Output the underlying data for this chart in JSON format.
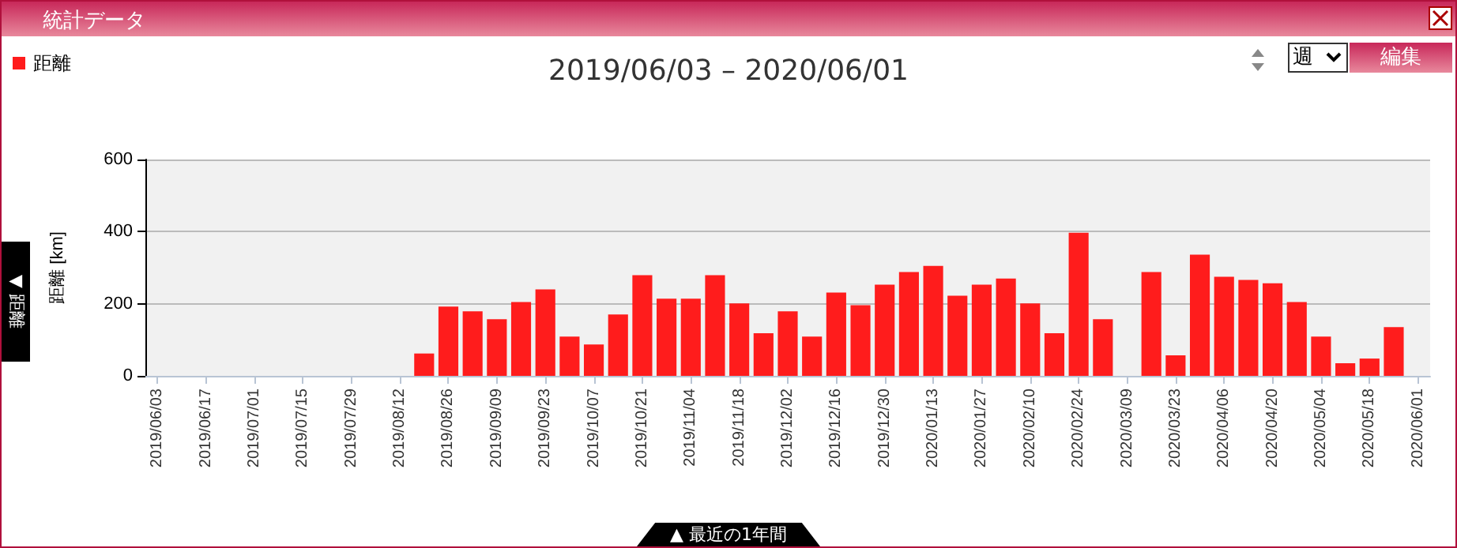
{
  "chart_data": {
    "type": "bar",
    "title": "2019/06/03 – 2020/06/01",
    "ylabel": "距離 [km]",
    "annotations": [
      "統計データ",
      "週",
      "編集",
      "▼ 距離",
      "▲ 最近の1年間"
    ],
    "categories": [
      "2019/06/03",
      null,
      "2019/06/17",
      null,
      "2019/07/01",
      null,
      "2019/07/15",
      null,
      "2019/07/29",
      null,
      "2019/08/12",
      null,
      "2019/08/26",
      null,
      "2019/09/09",
      null,
      "2019/09/23",
      null,
      "2019/10/07",
      null,
      "2019/10/21",
      null,
      "2019/11/04",
      null,
      "2019/11/18",
      null,
      "2019/12/02",
      null,
      "2019/12/16",
      null,
      "2019/12/30",
      null,
      "2020/01/13",
      null,
      "2020/01/27",
      null,
      "2020/02/10",
      null,
      "2020/02/24",
      null,
      "2020/03/09",
      null,
      "2020/03/23",
      null,
      "2020/04/06",
      null,
      "2020/04/20",
      null,
      "2020/05/04",
      null,
      "2020/05/18",
      null,
      "2020/06/01"
    ],
    "series": [
      {
        "name": "距離",
        "color": "#ff1c1c",
        "values": [
          0,
          0,
          0,
          0,
          0,
          0,
          0,
          0,
          0,
          0,
          0,
          62,
          192,
          179,
          157,
          205,
          240,
          109,
          87,
          170,
          279,
          214,
          214,
          279,
          201,
          118,
          179,
          109,
          231,
          196,
          253,
          288,
          305,
          222,
          253,
          270,
          201,
          118,
          397,
          157,
          0,
          288,
          57,
          336,
          275,
          266,
          257,
          205,
          109,
          35,
          48,
          135,
          0
        ]
      }
    ],
    "ylim": [
      0,
      600
    ],
    "yticks": [
      0,
      200,
      400,
      600
    ],
    "grid": "y",
    "legend": "top left"
  }
}
